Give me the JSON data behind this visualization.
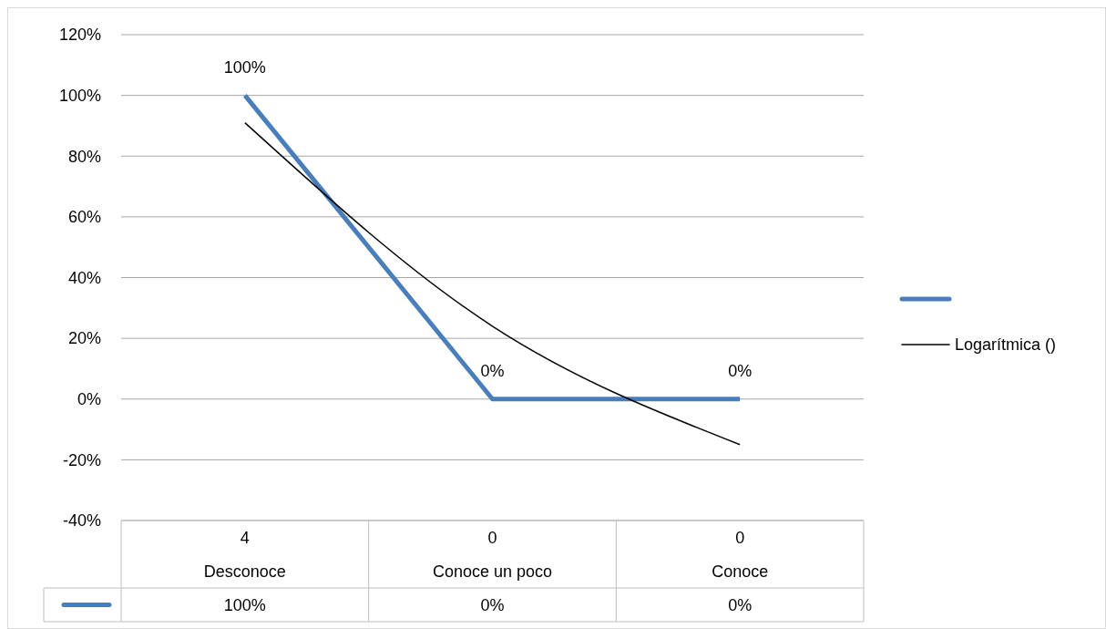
{
  "chart_data": {
    "type": "line",
    "categories": [
      "4\nDesconoce",
      "0\nConoce un poco",
      "0\nConoce"
    ],
    "series": [
      {
        "color": "#4a7ebb",
        "values": [
          100,
          0,
          0
        ],
        "value_labels": [
          "100%",
          "0%",
          "0%"
        ]
      },
      {
        "name": "Logarítmica ()",
        "color": "#000000",
        "values": [
          91,
          24,
          -15
        ]
      }
    ],
    "ylim": [
      -40,
      120
    ],
    "yticks": [
      {
        "value": -40,
        "label": "-40%"
      },
      {
        "value": -20,
        "label": "-20%"
      },
      {
        "value": 0,
        "label": "0%"
      },
      {
        "value": 20,
        "label": "20%"
      },
      {
        "value": 40,
        "label": "40%"
      },
      {
        "value": 60,
        "label": "60%"
      },
      {
        "value": 80,
        "label": "80%"
      },
      {
        "value": 100,
        "label": "100%"
      },
      {
        "value": 120,
        "label": "120%"
      }
    ],
    "grid": "y",
    "legend": "right"
  }
}
